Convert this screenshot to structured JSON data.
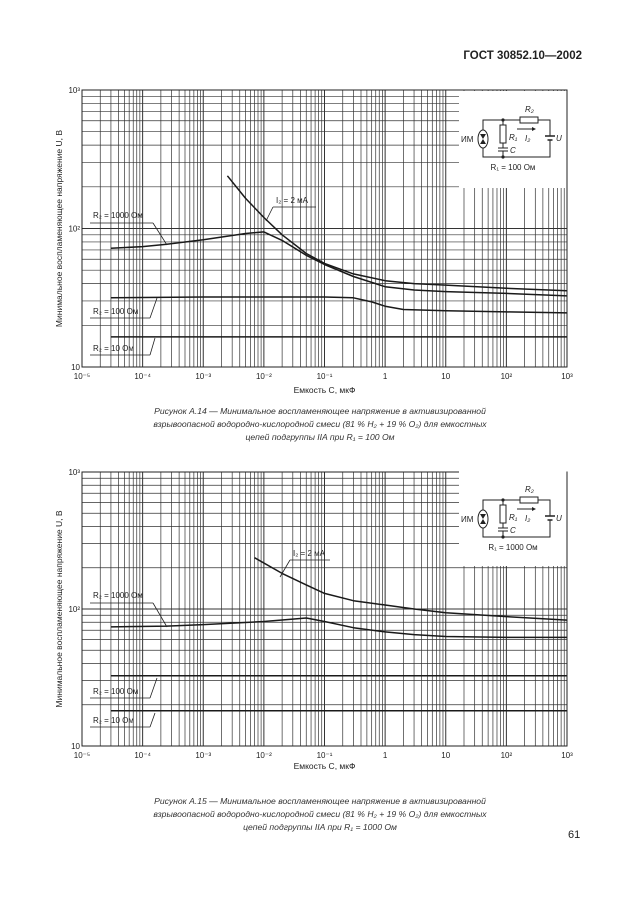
{
  "header": {
    "doc_id": "ГОСТ 30852.10—2002"
  },
  "page_number": "61",
  "chart_data": [
    {
      "type": "line",
      "scale": {
        "x": "log",
        "y": "log"
      },
      "grid": true,
      "xlim": [
        1e-05,
        1000
      ],
      "ylim": [
        10,
        1000
      ],
      "xlabel": "Емкость C, мкФ",
      "ylabel": "Минимальное воспламеняющее напряжение U, В",
      "x_ticks": [
        "10⁻⁵",
        "10⁻⁴",
        "10⁻³",
        "10⁻²",
        "10⁻¹",
        "1",
        "10",
        "10²",
        "10³"
      ],
      "y_ticks": [
        "10",
        "10²",
        "10³"
      ],
      "inset": {
        "r2": "R₂",
        "r1": "R₁",
        "i2": "I₂",
        "c": "C",
        "u": "U",
        "im": "ИМ",
        "r1_value": "R₁ = 100 Ом"
      },
      "series": [
        {
          "name": "I₂ = 2 мА",
          "x": [
            0.0025,
            0.005,
            0.01,
            0.02,
            0.05,
            0.1,
            0.3,
            1,
            3,
            10,
            100,
            1000
          ],
          "y": [
            240,
            165,
            120,
            90,
            66,
            56,
            47,
            42,
            40,
            39,
            37,
            35.5
          ]
        },
        {
          "name": "R₂ = 1000 Ом",
          "x": [
            3e-05,
            0.0001,
            0.00025,
            0.001,
            0.005,
            0.01,
            0.02,
            0.05,
            0.1,
            0.3,
            1,
            3,
            10,
            100,
            1000
          ],
          "y": [
            72,
            74,
            77,
            83,
            92,
            94.5,
            82,
            64,
            55,
            45,
            38,
            36,
            35,
            34,
            32.6
          ]
        },
        {
          "name": "R₂ = 100 Ом",
          "x": [
            3e-05,
            0.001,
            0.1,
            0.3,
            0.6,
            1,
            2,
            10,
            100,
            1000
          ],
          "y": [
            31.6,
            32,
            32,
            31.6,
            29.5,
            27.5,
            26,
            25.5,
            25,
            24.6
          ]
        },
        {
          "name": "R₂ = 10 Ом",
          "x": [
            3e-05,
            1000
          ],
          "y": [
            16.5,
            16.5
          ]
        }
      ],
      "caption": [
        "Рисунок А.14 — Минимальное воспламеняющее напряжение в активизированной",
        "взрывоопасной водородно-кислородной смеси (81 % H₂ + 19 % O₂) для емкостных",
        "цепей подгруппы IIA при R₁ = 100 Ом"
      ]
    },
    {
      "type": "line",
      "scale": {
        "x": "log",
        "y": "log"
      },
      "grid": true,
      "xlim": [
        1e-05,
        1000
      ],
      "ylim": [
        10,
        1000
      ],
      "xlabel": "Емкость C, мкФ",
      "ylabel": "Минимальное воспламеняющее напряжение U, В",
      "x_ticks": [
        "10⁻⁵",
        "10⁻⁴",
        "10⁻³",
        "10⁻²",
        "10⁻¹",
        "1",
        "10",
        "10²",
        "10³"
      ],
      "y_ticks": [
        "10",
        "10²",
        "10³"
      ],
      "inset": {
        "r2": "R₂",
        "r1": "R₁",
        "i2": "I₂",
        "c": "C",
        "u": "U",
        "im": "ИМ",
        "r1_value": "R₁ = 1000 Ом"
      },
      "series": [
        {
          "name": "I₂ = 2 мА",
          "x": [
            0.007,
            0.02,
            0.05,
            0.1,
            0.3,
            1,
            3,
            10,
            100,
            1000
          ],
          "y": [
            237,
            182,
            150,
            130,
            115,
            107,
            100,
            94,
            88,
            83
          ]
        },
        {
          "name": "R₂ = 1000 Ом",
          "x": [
            3e-05,
            0.00025,
            0.001,
            0.01,
            0.05,
            0.1,
            0.3,
            1,
            3,
            10,
            100,
            1000
          ],
          "y": [
            74,
            75,
            77,
            81,
            86,
            81,
            73,
            68,
            65,
            63,
            62,
            62
          ]
        },
        {
          "name": "R₂ = 100 Ом",
          "x": [
            3e-05,
            1000
          ],
          "y": [
            32.6,
            32.6
          ]
        },
        {
          "name": "R₂ = 10 Ом",
          "x": [
            3e-05,
            1000
          ],
          "y": [
            18.1,
            18.1
          ]
        }
      ],
      "caption": [
        "Рисунок А.15 — Минимальное воспламеняющее напряжение в активизированной",
        "взрывоопасной водородно-кислородной смеси (81 % H₂ + 19 % O₂) для емкостных",
        "цепей подгруппы IIA при R₁ = 1000 Ом"
      ]
    }
  ]
}
